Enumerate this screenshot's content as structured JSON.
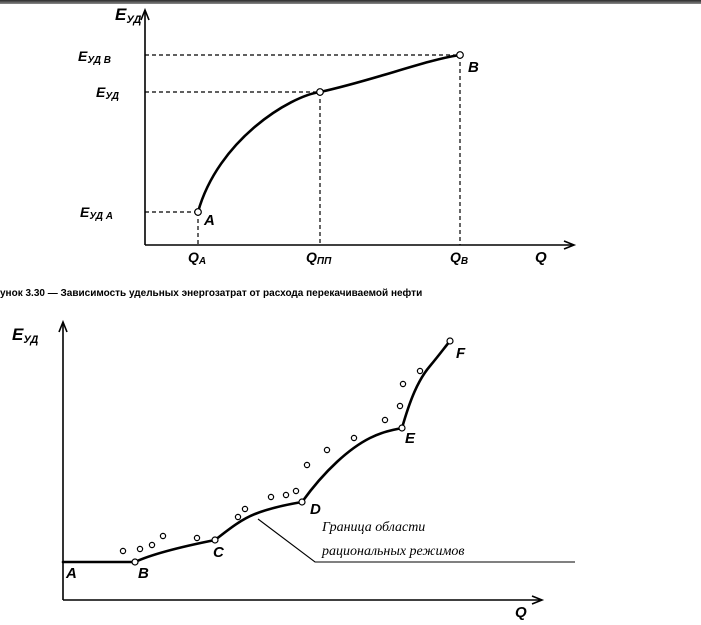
{
  "figure_top": {
    "y_axis_label": "Е",
    "y_axis_sub": "УД",
    "x_axis_label": "Q",
    "y_ticks": [
      {
        "main": "Е",
        "sub": "УД В"
      },
      {
        "main": "Е",
        "sub": "УД"
      },
      {
        "main": "Е",
        "sub": "УД А"
      }
    ],
    "x_ticks": [
      {
        "main": "Q",
        "sub": "А"
      },
      {
        "main": "Q",
        "sub": "ПП"
      },
      {
        "main": "Q",
        "sub": "В"
      }
    ],
    "points": [
      "A",
      "B"
    ]
  },
  "caption": "унок 3.30 — Зависимость удельных энергозатрат от расхода перекачиваемой нефти",
  "figure_bottom": {
    "y_axis_label": "Е",
    "y_axis_sub": "УД",
    "x_axis_label": "Q",
    "points": [
      "A",
      "B",
      "C",
      "D",
      "E",
      "F"
    ],
    "annotation_line1": "Граница области",
    "annotation_line2": "рациональных режимов"
  },
  "ui": {
    "top_bar_color": "#2a2a2a"
  }
}
